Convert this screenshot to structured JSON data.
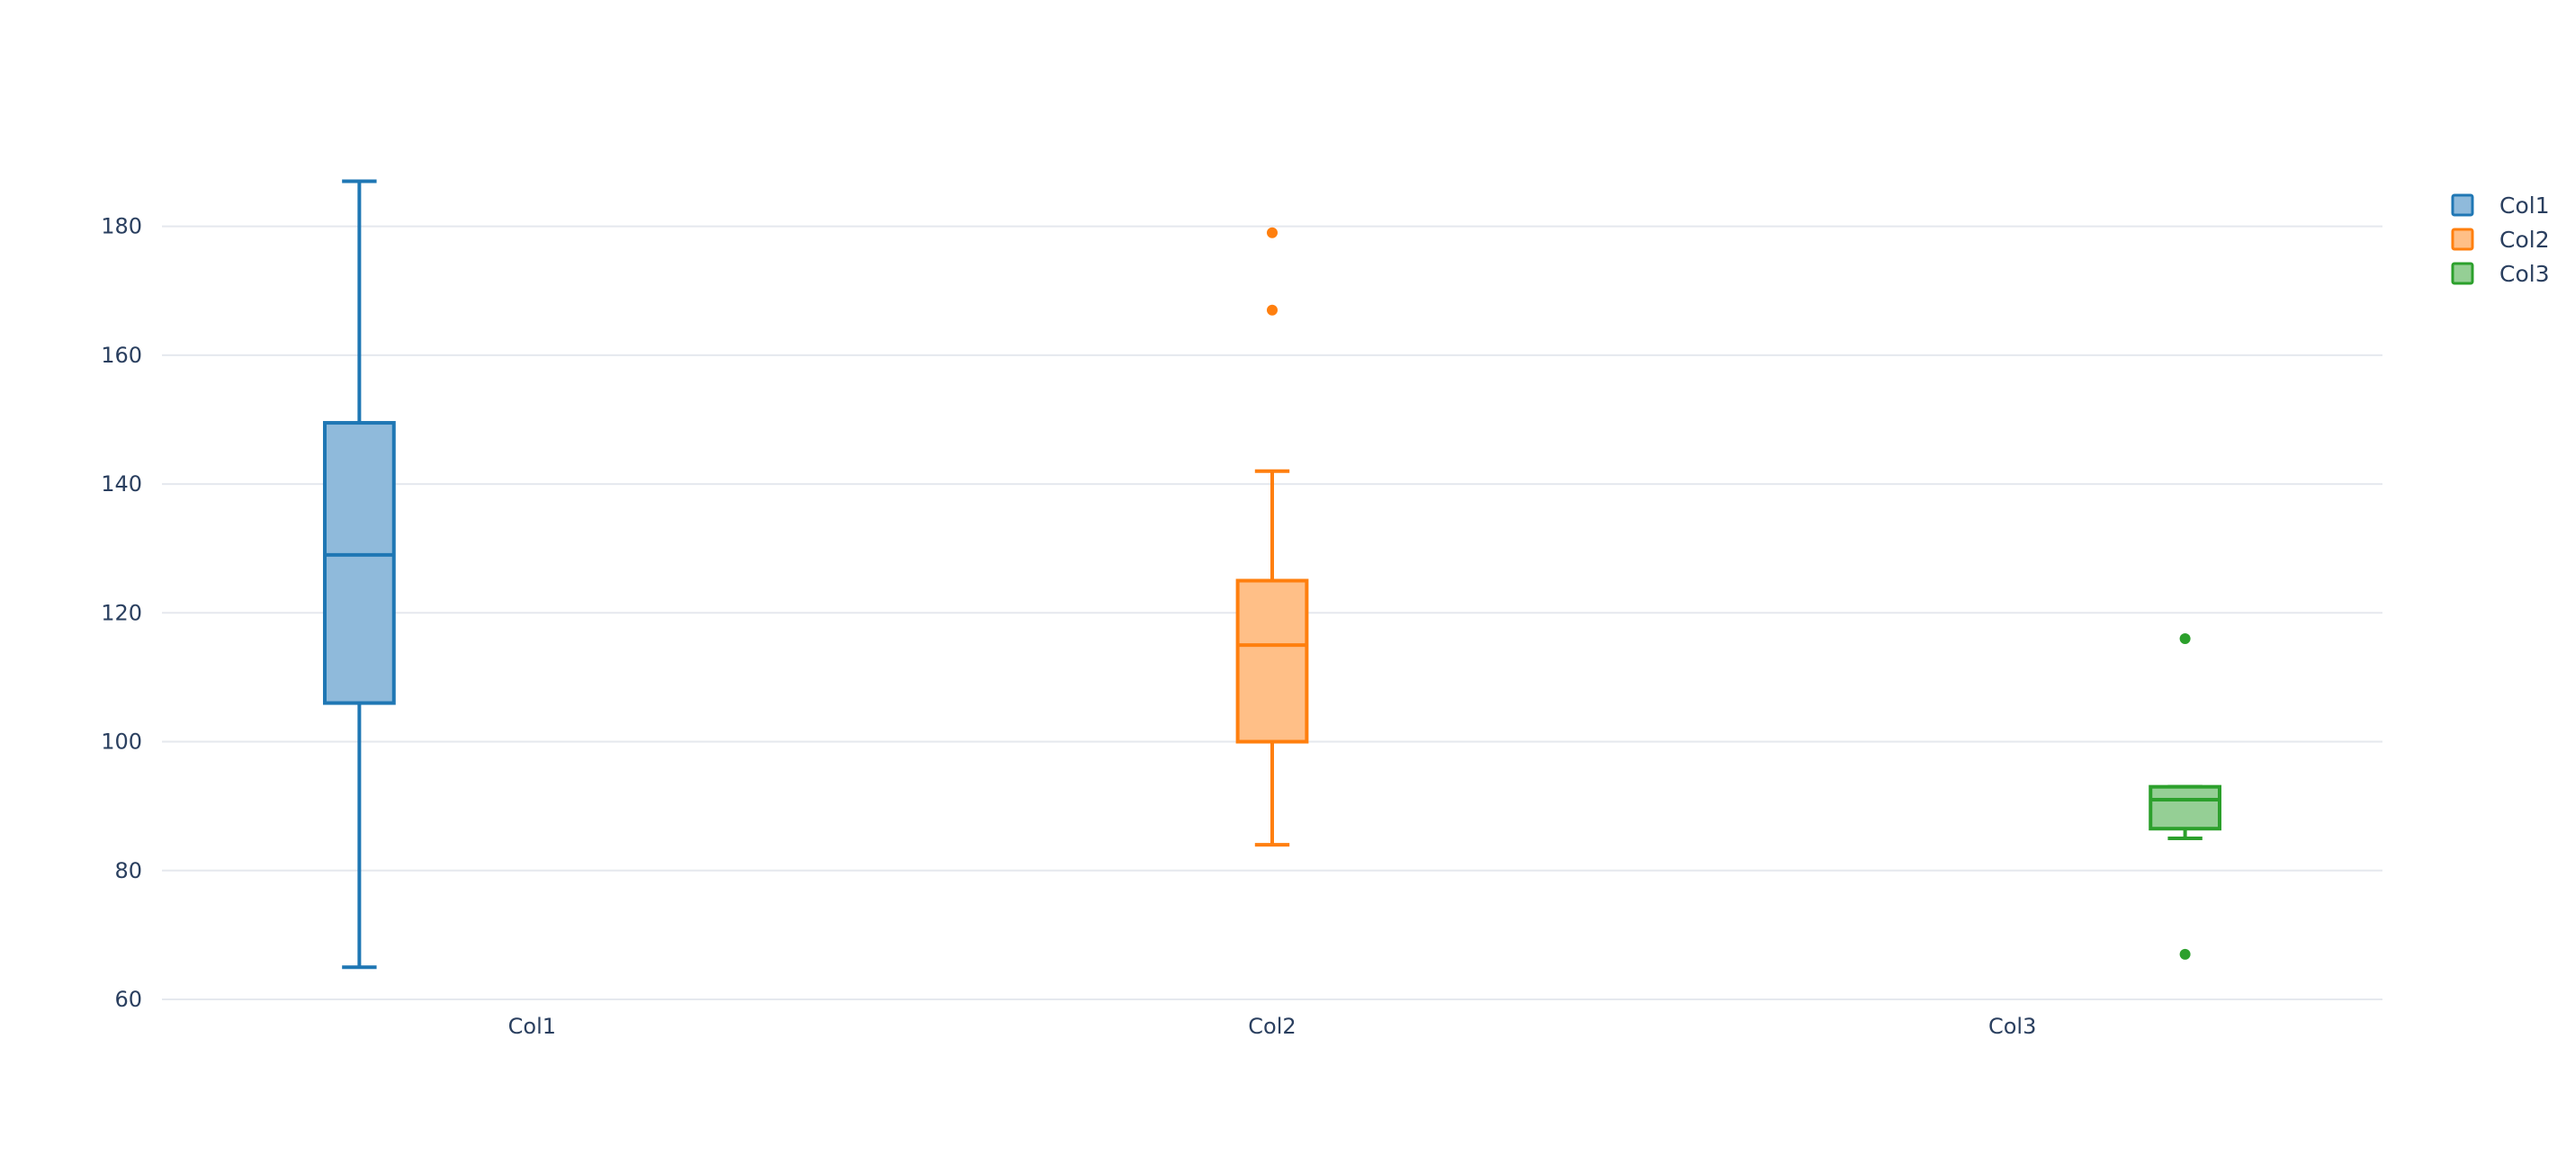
{
  "chart_data": {
    "type": "box",
    "title": "",
    "xlabel": "",
    "ylabel": "",
    "categories": [
      "Col1",
      "Col2",
      "Col3"
    ],
    "ylim": [
      60,
      190
    ],
    "yticks": [
      60,
      80,
      100,
      120,
      140,
      160,
      180
    ],
    "grid": true,
    "legend_position": "top-right",
    "series": [
      {
        "name": "Col1",
        "color": "#1f77b4",
        "fill": "#8fbadb",
        "min": 65,
        "q1": 106,
        "median": 129,
        "q3": 149.5,
        "max": 187,
        "outliers": []
      },
      {
        "name": "Col2",
        "color": "#ff7f0e",
        "fill": "#ffbf87",
        "min": 84,
        "q1": 100,
        "median": 115,
        "q3": 125,
        "max": 142,
        "outliers": [
          179,
          167
        ]
      },
      {
        "name": "Col3",
        "color": "#2ca02c",
        "fill": "#95cf95",
        "min": 85,
        "q1": 86.5,
        "median": 91,
        "q3": 93,
        "max": 93,
        "outliers": [
          116,
          67
        ]
      }
    ]
  }
}
